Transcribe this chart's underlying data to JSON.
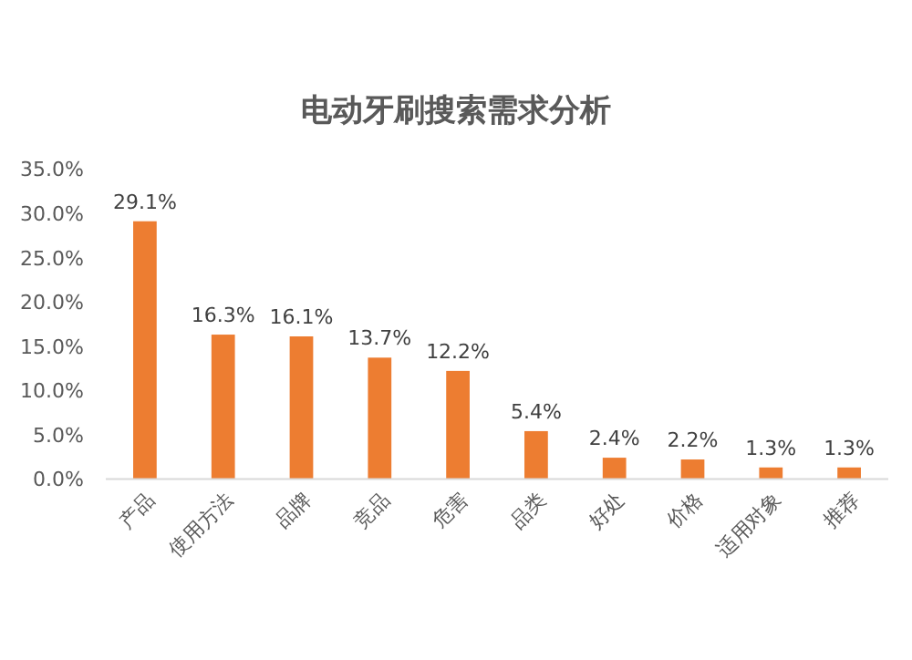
{
  "chart_data": {
    "type": "bar",
    "title": "电动牙刷搜索需求分析",
    "categories": [
      "产品",
      "使用方法",
      "品牌",
      "竞品",
      "危害",
      "品类",
      "好处",
      "价格",
      "适用对象",
      "推荐"
    ],
    "values": [
      29.1,
      16.3,
      16.1,
      13.7,
      12.2,
      5.4,
      2.4,
      2.2,
      1.3,
      1.3
    ],
    "value_labels": [
      "29.1%",
      "16.3%",
      "16.1%",
      "13.7%",
      "12.2%",
      "5.4%",
      "2.4%",
      "2.2%",
      "1.3%",
      "1.3%"
    ],
    "color": "#ed7d31",
    "ylim": [
      0,
      35
    ],
    "yticks": [
      {
        "value": 0,
        "label": "0.0%"
      },
      {
        "value": 5,
        "label": "5.0%"
      },
      {
        "value": 10,
        "label": "10.0%"
      },
      {
        "value": 15,
        "label": "15.0%"
      },
      {
        "value": 20,
        "label": "20.0%"
      },
      {
        "value": 25,
        "label": "25.0%"
      },
      {
        "value": 30,
        "label": "30.0%"
      },
      {
        "value": 35,
        "label": "35.0%"
      }
    ],
    "grid": false
  }
}
